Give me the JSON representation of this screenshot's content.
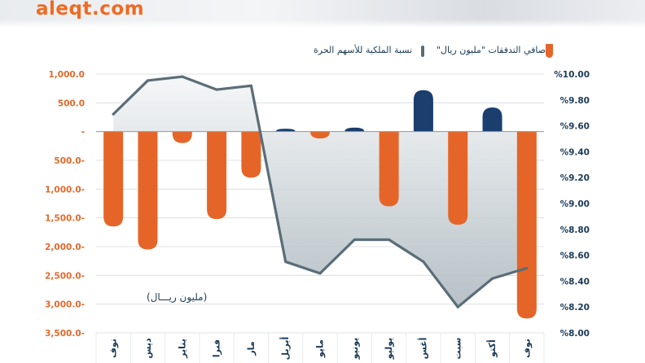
{
  "brand": {
    "text": "aleqt.com",
    "color": "#f06a22"
  },
  "legend": {
    "bars_label": "صافي التدفقات \"مليون ريال\"",
    "line_label": "نسبة الملكية للأسهم الحرة"
  },
  "unit_note": "(مليون ريـــال)",
  "colors": {
    "negative_bar": "#e56528",
    "positive_bar": "#1a3e6e",
    "line": "#5a6d78",
    "left_axis_text": "#e2682c",
    "right_axis_text": "#1b3a57",
    "grid": "#d5d9dd"
  },
  "chart_data": {
    "type": "bar",
    "title": "",
    "categories": [
      "نوفمبر",
      "ديسمبر",
      "يناير",
      "فبراير",
      "مارس",
      "أبريل",
      "مايو",
      "يونيو",
      "يوليو",
      "أغسطس",
      "سبتمبر",
      "أكتوبر",
      "نوفمبر"
    ],
    "category_labels": [
      "نوف",
      "ديس",
      "يناير",
      "فبرا",
      "مار",
      "أبريل",
      "مايو",
      "يونيو",
      "يوليو",
      "أغس",
      "سبت",
      "أكتو",
      "نوف"
    ],
    "series": [
      {
        "name": "صافي التدفقات \"مليون ريال\"",
        "axis": "left",
        "type": "bar",
        "values": [
          -1650,
          -2050,
          -200,
          -1520,
          -800,
          50,
          -120,
          70,
          -1300,
          720,
          -1620,
          420,
          -3250
        ]
      },
      {
        "name": "نسبة الملكية للأسهم الحرة",
        "axis": "right",
        "type": "line",
        "values": [
          9.69,
          9.95,
          9.98,
          9.88,
          9.91,
          8.55,
          8.46,
          8.72,
          8.72,
          8.55,
          8.2,
          8.42,
          8.5
        ]
      }
    ],
    "left_axis": {
      "ylim": [
        -3500,
        1000
      ],
      "ticks": [
        1000,
        500,
        0,
        -500,
        -1000,
        -1500,
        -2000,
        -2500,
        -3000,
        -3500
      ],
      "tick_labels": [
        "1,000.0",
        "500.0",
        "-",
        "500.0-",
        "1,000.0-",
        "1,500.0-",
        "2,000.0-",
        "2,500.0-",
        "3,000.0-",
        "3,500.0-"
      ]
    },
    "right_axis": {
      "ylim": [
        8.0,
        10.0
      ],
      "ticks": [
        10.0,
        9.8,
        9.6,
        9.4,
        9.2,
        9.0,
        8.8,
        8.6,
        8.4,
        8.2,
        8.0
      ],
      "tick_labels": [
        "%10.00",
        "%9.80",
        "%9.60",
        "%9.40",
        "%9.20",
        "%9.00",
        "%8.80",
        "%8.60",
        "%8.40",
        "%8.20",
        "%8.00"
      ]
    },
    "grid": true,
    "legend_position": "top-right"
  }
}
